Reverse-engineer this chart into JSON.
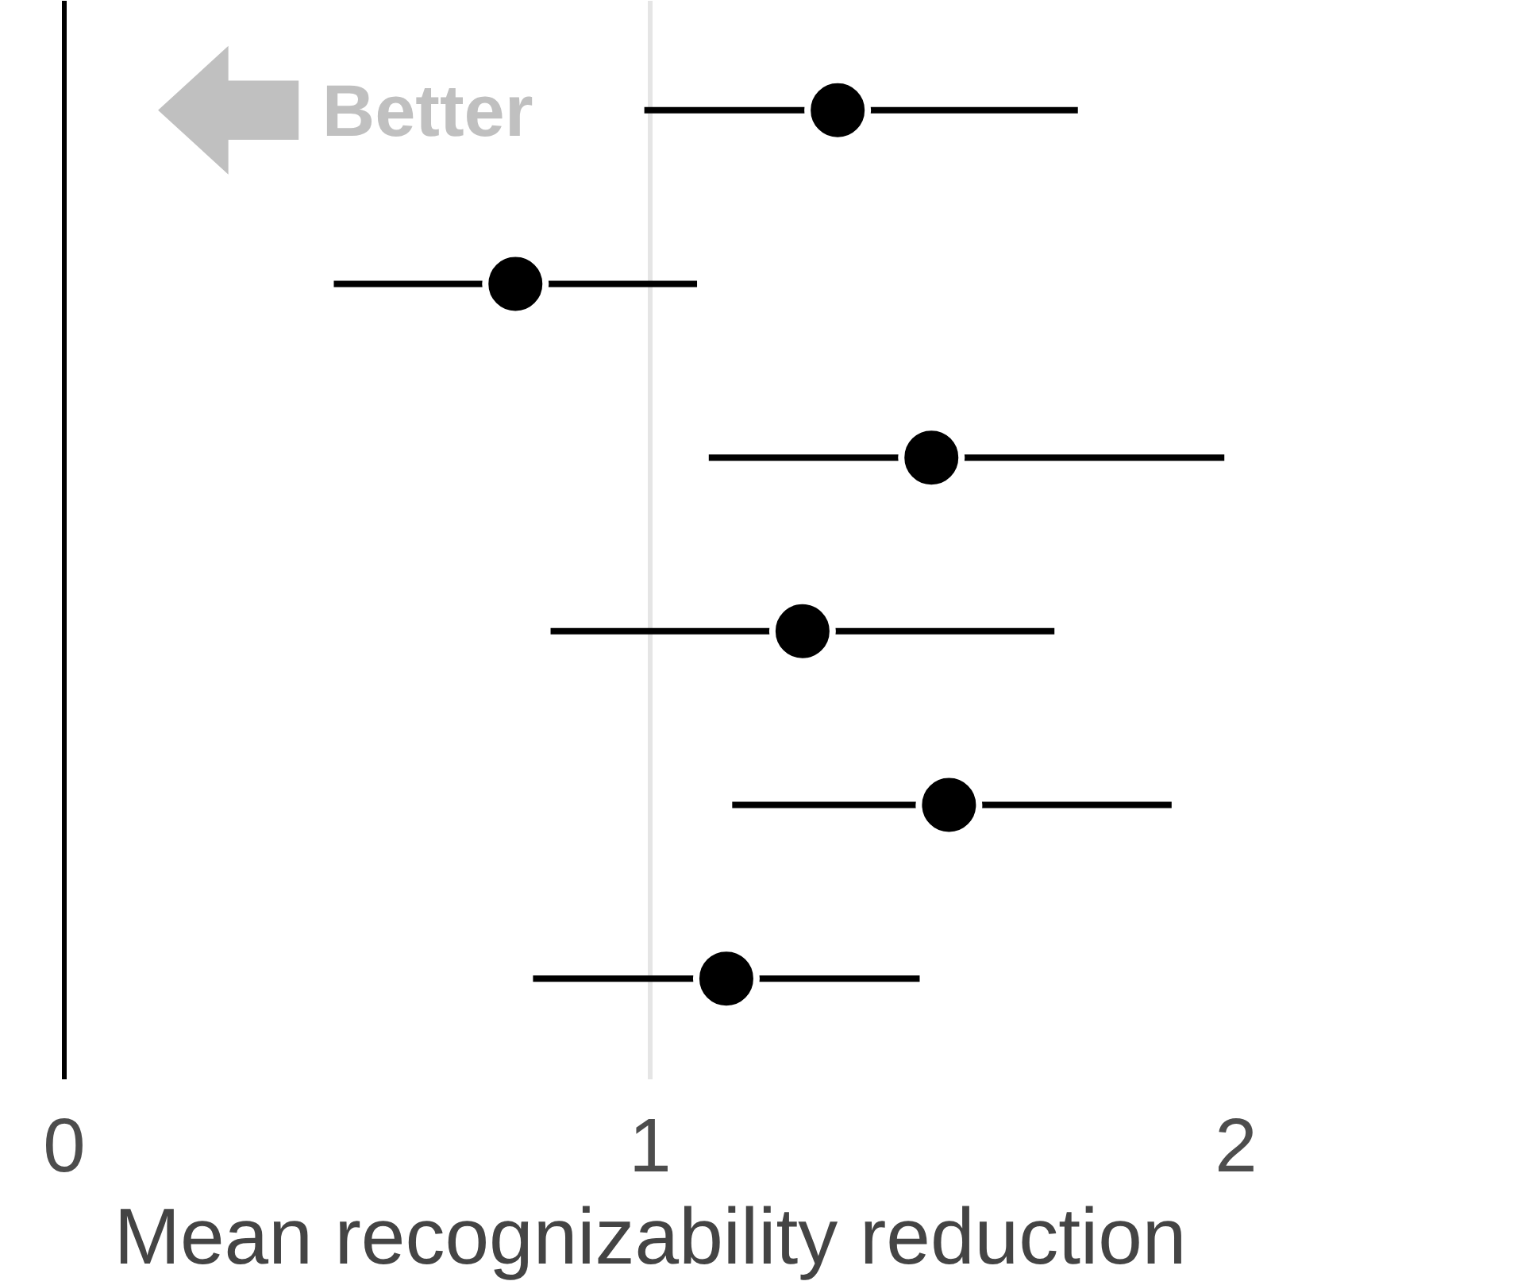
{
  "chart_data": {
    "type": "scatter",
    "orientation": "horizontal",
    "xlabel": "Mean recognizability reduction",
    "categories": [
      null,
      null,
      null,
      null,
      null,
      null
    ],
    "values": [
      1.32,
      0.77,
      1.48,
      1.26,
      1.51,
      1.13
    ],
    "errors": [
      [
        0.99,
        1.73
      ],
      [
        0.46,
        1.08
      ],
      [
        1.1,
        1.98
      ],
      [
        0.83,
        1.69
      ],
      [
        1.14,
        1.89
      ],
      [
        0.8,
        1.46
      ]
    ],
    "color": "#000000",
    "marker": "circle",
    "xlim": [
      0,
      2
    ],
    "xticks": [
      0,
      1,
      2
    ],
    "grid": "x",
    "tick_labels": "x",
    "annotations": [
      "Better"
    ]
  }
}
